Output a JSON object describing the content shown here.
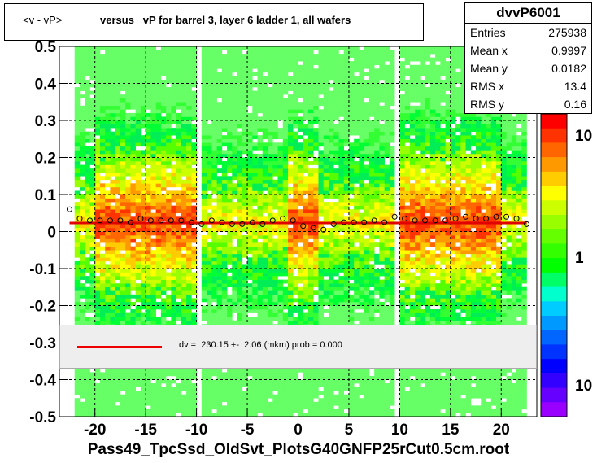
{
  "title": {
    "part1": "<v - vP>",
    "part2": "versus   vP for barrel 3, layer 6 ladder 1, all wafers"
  },
  "stats": {
    "name": "dvvP6001",
    "rows": [
      {
        "k": "Entries",
        "v": "275938"
      },
      {
        "k": "Mean x",
        "v": "0.9997"
      },
      {
        "k": "Mean y",
        "v": "0.0182"
      },
      {
        "k": "RMS x",
        "v": "13.4"
      },
      {
        "k": "RMS y",
        "v": "0.16"
      }
    ]
  },
  "fit_legend": "dv =  230.15 +-  2.06 (mkm) prob = 0.000",
  "x_title": "Pass49_TpcSsd_OldSvt_PlotsG40GNFP25rCut0.5cm.root",
  "colors": {
    "fit_line": "#e00000",
    "marker": "#000000"
  },
  "chart_data": {
    "type": "heatmap",
    "xlim": [
      -23.5,
      23.5
    ],
    "ylim": [
      -0.5,
      0.5
    ],
    "x_ticks": [
      -20,
      -15,
      -10,
      -5,
      0,
      5,
      10,
      15,
      20
    ],
    "x_tick_labels": [
      "-20",
      "-15",
      "-10",
      "-5",
      "0",
      "5",
      "10",
      "15",
      "20"
    ],
    "y_ticks": [
      0.5,
      0.4,
      0.3,
      0.2,
      0.1,
      0,
      -0.1,
      -0.2,
      -0.3,
      -0.4,
      -0.5
    ],
    "y_tick_labels": [
      "0.5",
      "0.4",
      "0.3",
      "0.2",
      "0.1",
      "0",
      "-0.1",
      "-0.2",
      "-0.3",
      "-0.4",
      "-0.5"
    ],
    "z_scale": "log",
    "z_tick_labels": [
      "10",
      "1",
      "10"
    ],
    "grid": true,
    "profile_points": {
      "x": [
        -22.5,
        -21.5,
        -20.5,
        -19.5,
        -18.5,
        -17.5,
        -16.5,
        -15.5,
        -14.5,
        -13.5,
        -12.5,
        -11.5,
        -10.5,
        -9.5,
        -8.5,
        -7.5,
        -6.5,
        -5.5,
        -4.5,
        -3.5,
        -2.5,
        -1.5,
        -0.5,
        0.5,
        1.5,
        2.5,
        3.5,
        4.5,
        5.5,
        6.5,
        7.5,
        8.5,
        9.5,
        10.5,
        11.5,
        12.5,
        13.5,
        14.5,
        15.5,
        16.5,
        17.5,
        18.5,
        19.5,
        20.5,
        21.5,
        22.5
      ],
      "y": [
        0.06,
        0.035,
        0.03,
        0.03,
        0.03,
        0.03,
        0.025,
        0.035,
        0.03,
        0.03,
        0.03,
        0.03,
        0.025,
        0.02,
        0.03,
        0.025,
        0.02,
        0.02,
        0.025,
        0.02,
        0.03,
        0.035,
        0.03,
        0.015,
        0.01,
        0.005,
        0.02,
        0.025,
        0.025,
        0.025,
        0.03,
        0.025,
        0.04,
        0.035,
        0.03,
        0.03,
        0.03,
        0.03,
        0.035,
        0.04,
        0.035,
        0.035,
        0.04,
        0.04,
        0.035,
        0.02
      ]
    },
    "fit": {
      "y": 0.023
    }
  }
}
